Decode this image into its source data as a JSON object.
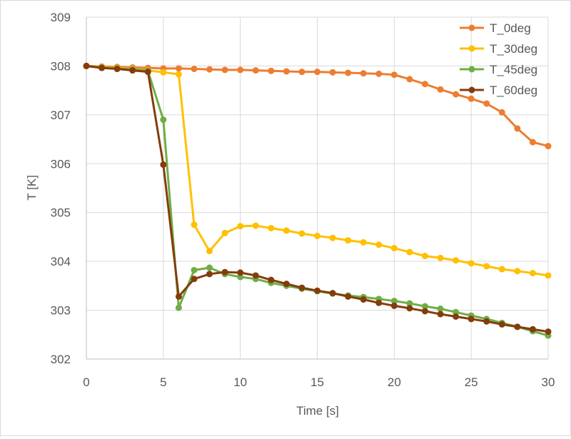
{
  "chart_data": {
    "type": "line",
    "title": "",
    "xlabel": "Time [s]",
    "ylabel": "T [K]",
    "xlim": [
      0,
      30
    ],
    "ylim": [
      302,
      309
    ],
    "xticks": [
      0,
      5,
      10,
      15,
      20,
      25,
      30
    ],
    "yticks": [
      302,
      303,
      304,
      305,
      306,
      307,
      308,
      309
    ],
    "grid": "vertical and horizontal major gridlines",
    "legend_position": "top-right",
    "x": [
      0,
      1,
      2,
      3,
      4,
      5,
      6,
      7,
      8,
      9,
      10,
      11,
      12,
      13,
      14,
      15,
      16,
      17,
      18,
      19,
      20,
      21,
      22,
      23,
      24,
      25,
      26,
      27,
      28,
      29,
      30
    ],
    "series": [
      {
        "name": "T_0deg",
        "color": "#ED7D31",
        "values": [
          308.0,
          307.99,
          307.98,
          307.97,
          307.96,
          307.95,
          307.95,
          307.94,
          307.93,
          307.92,
          307.92,
          307.91,
          307.9,
          307.89,
          307.88,
          307.88,
          307.87,
          307.86,
          307.85,
          307.84,
          307.82,
          307.73,
          307.63,
          307.52,
          307.42,
          307.33,
          307.23,
          307.05,
          306.72,
          306.44,
          306.36
        ]
      },
      {
        "name": "T_30deg",
        "color": "#FFC000",
        "values": [
          308.0,
          307.98,
          307.96,
          307.94,
          307.91,
          307.87,
          307.83,
          304.75,
          304.21,
          304.58,
          304.72,
          304.73,
          304.68,
          304.63,
          304.57,
          304.52,
          304.48,
          304.43,
          304.39,
          304.34,
          304.27,
          304.19,
          304.11,
          304.07,
          304.02,
          303.96,
          303.9,
          303.84,
          303.8,
          303.76,
          303.71
        ]
      },
      {
        "name": "T_45deg",
        "color": "#70AD47",
        "values": [
          308.0,
          307.97,
          307.95,
          307.93,
          307.9,
          306.9,
          303.05,
          303.82,
          303.87,
          303.74,
          303.68,
          303.64,
          303.56,
          303.5,
          303.44,
          303.39,
          303.34,
          303.3,
          303.27,
          303.23,
          303.19,
          303.14,
          303.08,
          303.03,
          302.96,
          302.89,
          302.82,
          302.74,
          302.66,
          302.57,
          302.48
        ]
      },
      {
        "name": "T_60deg",
        "color": "#843C0C",
        "values": [
          308.0,
          307.96,
          307.94,
          307.91,
          307.88,
          305.98,
          303.28,
          303.64,
          303.74,
          303.78,
          303.77,
          303.71,
          303.62,
          303.54,
          303.46,
          303.4,
          303.35,
          303.28,
          303.22,
          303.15,
          303.09,
          303.04,
          302.98,
          302.92,
          302.87,
          302.82,
          302.77,
          302.71,
          302.66,
          302.61,
          302.56
        ]
      }
    ]
  }
}
